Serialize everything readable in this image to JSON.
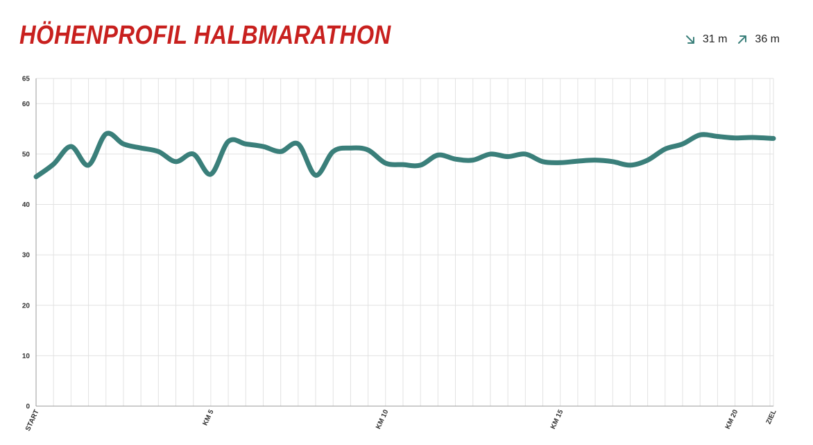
{
  "title": "HÖHENPROFIL HALBMARATHON",
  "colors": {
    "title": "#c8201e",
    "line": "#3a7f7a",
    "grid": "#e2e2e2",
    "axis": "#9a9a9a"
  },
  "stats": [
    {
      "icon": "arrow-down-right-icon",
      "value": "31 m"
    },
    {
      "icon": "arrow-up-right-icon",
      "value": "36 m"
    }
  ],
  "chart_data": {
    "type": "line",
    "title": "HÖHENPROFIL HALBMARATHON",
    "xlabel": "",
    "ylabel": "",
    "ylim": [
      0,
      65
    ],
    "yticks": [
      0,
      10,
      20,
      30,
      40,
      50,
      60,
      65
    ],
    "xlim": [
      0,
      21.1
    ],
    "grid": true,
    "x_ticks": [
      {
        "x": 0,
        "label": "START"
      },
      {
        "x": 5,
        "label": "KM 5"
      },
      {
        "x": 10,
        "label": "KM 10"
      },
      {
        "x": 15,
        "label": "KM 15"
      },
      {
        "x": 20,
        "label": "KM 20"
      },
      {
        "x": 21.1,
        "label": "ZIEL"
      }
    ],
    "series": [
      {
        "x": [
          0,
          0.5,
          1.0,
          1.5,
          2.0,
          2.5,
          3.0,
          3.5,
          4.0,
          4.5,
          5.0,
          5.5,
          6.0,
          6.5,
          7.0,
          7.5,
          8.0,
          8.5,
          9.0,
          9.5,
          10.0,
          10.5,
          11.0,
          11.5,
          12.0,
          12.5,
          13.0,
          13.5,
          14.0,
          14.5,
          15.0,
          15.5,
          16.0,
          16.5,
          17.0,
          17.5,
          18.0,
          18.5,
          19.0,
          19.5,
          20.0,
          20.5,
          21.1
        ],
        "values": [
          45.5,
          48,
          51.5,
          47.8,
          54,
          52,
          51.2,
          50.5,
          48.5,
          50,
          46,
          52.5,
          52,
          51.5,
          50.5,
          52,
          45.8,
          50.5,
          51.2,
          50.8,
          48.2,
          47.9,
          47.8,
          49.8,
          49,
          48.8,
          50,
          49.5,
          50,
          48.5,
          48.3,
          48.6,
          48.8,
          48.5,
          47.8,
          48.8,
          51,
          52,
          53.8,
          53.5,
          53.2,
          53.3,
          53.1
        ]
      }
    ]
  }
}
